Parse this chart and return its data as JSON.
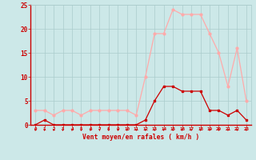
{
  "x": [
    0,
    1,
    2,
    3,
    4,
    5,
    6,
    7,
    8,
    9,
    10,
    11,
    12,
    13,
    14,
    15,
    16,
    17,
    18,
    19,
    20,
    21,
    22,
    23
  ],
  "wind_avg": [
    0,
    1,
    0,
    0,
    0,
    0,
    0,
    0,
    0,
    0,
    0,
    0,
    1,
    5,
    8,
    8,
    7,
    7,
    7,
    3,
    3,
    2,
    3,
    1
  ],
  "wind_gust": [
    3,
    3,
    2,
    3,
    3,
    2,
    3,
    3,
    3,
    3,
    3,
    2,
    10,
    19,
    19,
    24,
    23,
    23,
    23,
    19,
    15,
    8,
    16,
    5
  ],
  "avg_color": "#cc0000",
  "gust_color": "#ffaaaa",
  "bg_color": "#cce8e8",
  "grid_color": "#aacccc",
  "xlabel": "Vent moyen/en rafales ( km/h )",
  "ylim": [
    0,
    25
  ],
  "xlim": [
    -0.5,
    23.5
  ],
  "yticks": [
    0,
    5,
    10,
    15,
    20,
    25
  ],
  "xticks": [
    0,
    1,
    2,
    3,
    4,
    5,
    6,
    7,
    8,
    9,
    10,
    11,
    12,
    13,
    14,
    15,
    16,
    17,
    18,
    19,
    20,
    21,
    22,
    23
  ]
}
